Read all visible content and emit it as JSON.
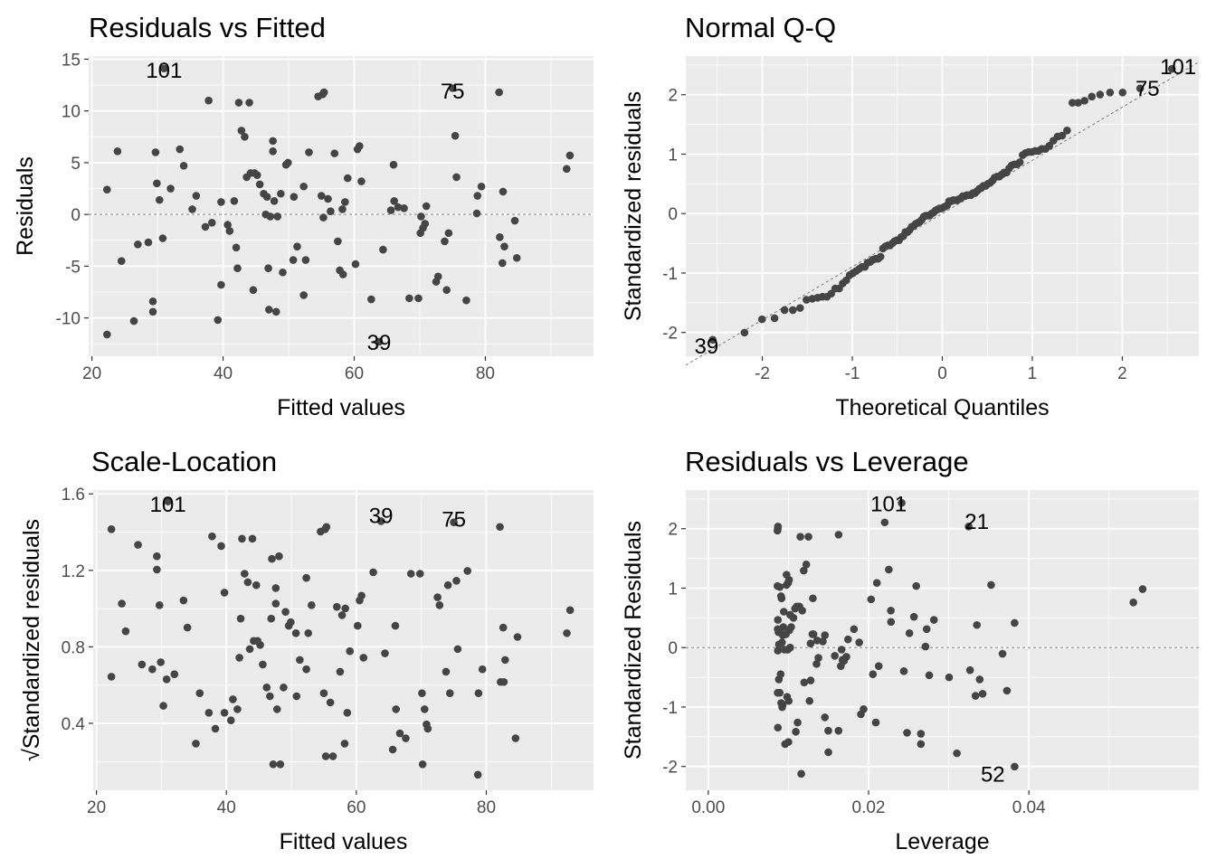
{
  "chart_data": [
    {
      "type": "scatter",
      "title": "Residuals vs Fitted",
      "xlabel": "Fitted values",
      "ylabel": "Residuals",
      "xlim": [
        19.5,
        96.5
      ],
      "ylim": [
        -13.7,
        15.3
      ],
      "xticks": [
        "20",
        "40",
        "60",
        "80"
      ],
      "yticks": [
        "-10",
        "-5",
        "0",
        "5",
        "10",
        "15"
      ],
      "reference_line": 0,
      "grid": true,
      "annotations": [
        {
          "label": "101",
          "x": 31,
          "y": 14.0
        },
        {
          "label": "75",
          "x": 75,
          "y": 12.0
        },
        {
          "label": "39",
          "x": 63.8,
          "y": -12.3
        }
      ],
      "points": [
        [
          22.3,
          2.4
        ],
        [
          22.3,
          -11.6
        ],
        [
          23.9,
          6.1
        ],
        [
          24.5,
          -4.5
        ],
        [
          26.4,
          -10.3
        ],
        [
          27.0,
          -2.9
        ],
        [
          28.6,
          -2.7
        ],
        [
          29.3,
          -8.4
        ],
        [
          29.3,
          -9.4
        ],
        [
          29.7,
          6.0
        ],
        [
          29.9,
          3.0
        ],
        [
          30.3,
          1.4
        ],
        [
          30.8,
          -2.3
        ],
        [
          31.0,
          14.1
        ],
        [
          32.0,
          2.5
        ],
        [
          33.4,
          6.3
        ],
        [
          34.0,
          4.7
        ],
        [
          35.3,
          0.5
        ],
        [
          35.9,
          1.8
        ],
        [
          37.3,
          -1.2
        ],
        [
          37.8,
          11.0
        ],
        [
          38.3,
          -0.8
        ],
        [
          39.2,
          -10.2
        ],
        [
          39.7,
          -6.8
        ],
        [
          39.7,
          1.2
        ],
        [
          40.7,
          -1.0
        ],
        [
          41.0,
          -1.6
        ],
        [
          41.7,
          1.3
        ],
        [
          42.0,
          -3.2
        ],
        [
          42.2,
          -5.2
        ],
        [
          42.4,
          10.8
        ],
        [
          42.8,
          8.1
        ],
        [
          43.3,
          7.5
        ],
        [
          43.6,
          3.6
        ],
        [
          44.0,
          10.8
        ],
        [
          44.2,
          4.0
        ],
        [
          44.6,
          -7.3
        ],
        [
          44.8,
          4.0
        ],
        [
          45.2,
          3.8
        ],
        [
          45.6,
          2.9
        ],
        [
          46.2,
          2.0
        ],
        [
          46.5,
          0.0
        ],
        [
          46.7,
          1.7
        ],
        [
          46.9,
          -5.2
        ],
        [
          47.0,
          -9.2
        ],
        [
          47.2,
          -0.2
        ],
        [
          47.6,
          6.1
        ],
        [
          47.6,
          7.1
        ],
        [
          47.8,
          1.3
        ],
        [
          48.1,
          -9.4
        ],
        [
          48.3,
          -0.2
        ],
        [
          48.8,
          2.0
        ],
        [
          49.1,
          -5.6
        ],
        [
          49.6,
          4.8
        ],
        [
          49.9,
          5.0
        ],
        [
          50.7,
          -4.4
        ],
        [
          50.8,
          1.7
        ],
        [
          51.3,
          -3.1
        ],
        [
          52.3,
          2.7
        ],
        [
          52.3,
          -7.8
        ],
        [
          52.6,
          -4.4
        ],
        [
          53.1,
          6.0
        ],
        [
          54.5,
          11.4
        ],
        [
          55.0,
          1.8
        ],
        [
          55.2,
          11.6
        ],
        [
          55.3,
          -0.3
        ],
        [
          55.4,
          11.8
        ],
        [
          56.0,
          1.5
        ],
        [
          56.4,
          0.3
        ],
        [
          57.0,
          5.9
        ],
        [
          57.5,
          -2.6
        ],
        [
          57.8,
          -5.4
        ],
        [
          58.2,
          0.5
        ],
        [
          58.3,
          -5.8
        ],
        [
          58.6,
          1.2
        ],
        [
          59.0,
          3.5
        ],
        [
          60.2,
          -4.8
        ],
        [
          60.5,
          6.3
        ],
        [
          60.8,
          6.6
        ],
        [
          61.1,
          3.2
        ],
        [
          62.6,
          -8.2
        ],
        [
          63.8,
          -12.3
        ],
        [
          64.4,
          -3.4
        ],
        [
          65.6,
          0.4
        ],
        [
          66.0,
          4.8
        ],
        [
          66.1,
          1.3
        ],
        [
          66.7,
          0.7
        ],
        [
          67.6,
          0.6
        ],
        [
          68.4,
          -8.1
        ],
        [
          69.8,
          -8.1
        ],
        [
          70.1,
          -1.8
        ],
        [
          70.2,
          -0.2
        ],
        [
          70.5,
          -1.3
        ],
        [
          70.8,
          -0.9
        ],
        [
          71.0,
          0.8
        ],
        [
          72.5,
          -6.5
        ],
        [
          72.8,
          -6.0
        ],
        [
          73.8,
          -2.6
        ],
        [
          74.1,
          -7.3
        ],
        [
          74.4,
          -1.8
        ],
        [
          75.0,
          12.2
        ],
        [
          75.4,
          7.6
        ],
        [
          75.6,
          3.6
        ],
        [
          77.1,
          -8.3
        ],
        [
          78.7,
          0.1
        ],
        [
          78.8,
          1.8
        ],
        [
          79.4,
          2.7
        ],
        [
          82.1,
          11.8
        ],
        [
          82.2,
          -2.2
        ],
        [
          82.6,
          -4.7
        ],
        [
          82.7,
          2.2
        ],
        [
          82.9,
          -3.1
        ],
        [
          84.5,
          -0.6
        ],
        [
          84.8,
          -4.2
        ],
        [
          92.4,
          4.4
        ],
        [
          92.9,
          5.7
        ]
      ]
    },
    {
      "type": "scatter",
      "title": "Normal Q-Q",
      "xlabel": "Theoretical Quantiles",
      "ylabel": "Standardized residuals",
      "xlim": [
        -2.85,
        2.85
      ],
      "ylim": [
        -2.4,
        2.65
      ],
      "xticks": [
        "-2",
        "-1",
        "0",
        "1",
        "2"
      ],
      "yticks": [
        "-2",
        "-1",
        "0",
        "1",
        "2"
      ],
      "reference_line_through": [
        [
          -2.85,
          -2.55
        ],
        [
          2.85,
          2.55
        ]
      ],
      "grid": true,
      "annotations": [
        {
          "label": "101",
          "x": 2.62,
          "y": 2.48
        },
        {
          "label": "75",
          "x": 2.28,
          "y": 2.12
        },
        {
          "label": "39",
          "x": -2.62,
          "y": -2.22
        }
      ],
      "points_summary": "approx. 118 sample quantiles from -2.18 to 2.48 lying close to the reference line, S-shaped deviation near the tails"
    },
    {
      "type": "scatter",
      "title": "Scale-Location",
      "xlabel": "Fitted values",
      "ylabel": "√Standardized residuals",
      "xlim": [
        19.5,
        96.5
      ],
      "ylim": [
        0.05,
        1.62
      ],
      "xticks": [
        "20",
        "40",
        "60",
        "80"
      ],
      "yticks": [
        "0.4",
        "0.8",
        "1.2",
        "1.6"
      ],
      "grid": true,
      "annotations": [
        {
          "label": "101",
          "x": 31,
          "y": 1.55
        },
        {
          "label": "39",
          "x": 63.8,
          "y": 1.49
        },
        {
          "label": "75",
          "x": 75,
          "y": 1.47
        }
      ]
    },
    {
      "type": "scatter",
      "title": "Residuals vs Leverage",
      "xlabel": "Leverage",
      "ylabel": "Standardized Residuals",
      "xlim": [
        -0.0028,
        0.0612
      ],
      "ylim": [
        -2.4,
        2.65
      ],
      "xticks": [
        "0.00",
        "0.02",
        "0.04"
      ],
      "yticks": [
        "-2",
        "-1",
        "0",
        "1",
        "2"
      ],
      "reference_line": 0,
      "grid": true,
      "annotations": [
        {
          "label": "101",
          "x": 0.0225,
          "y": 2.43
        },
        {
          "label": "21",
          "x": 0.0335,
          "y": 2.13
        },
        {
          "label": "52",
          "x": 0.0355,
          "y": -2.12
        }
      ]
    }
  ]
}
